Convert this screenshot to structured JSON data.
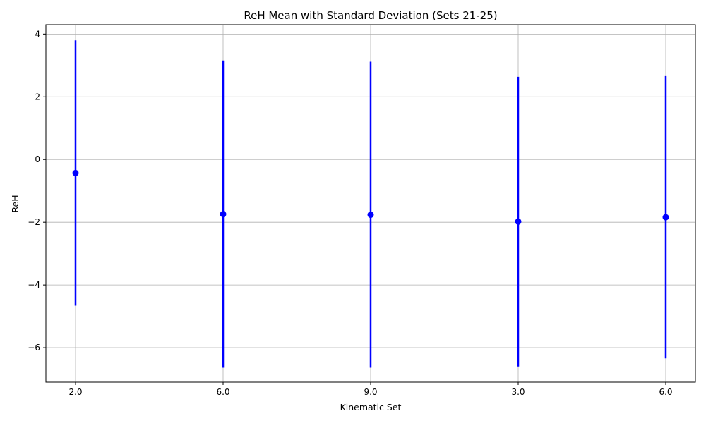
{
  "chart_data": {
    "type": "scatter",
    "title": "ReH Mean with Standard Deviation (Sets 21-25)",
    "xlabel": "Kinematic Set",
    "ylabel": "ReH",
    "categories": [
      "2.0",
      "6.0",
      "9.0",
      "3.0",
      "6.0"
    ],
    "series": [
      {
        "values": [
          -0.43,
          -1.74,
          -1.76,
          -1.98,
          -1.84
        ],
        "errors": [
          4.23,
          4.9,
          4.88,
          4.62,
          4.5
        ],
        "color": "#0000ff"
      }
    ],
    "ylim": [
      -7.1,
      4.3
    ],
    "yticks": [
      4,
      2,
      0,
      -2,
      -4,
      -6
    ],
    "ytick_labels": [
      "4",
      "2",
      "0",
      "−2",
      "−4",
      "−6"
    ],
    "grid": true
  }
}
